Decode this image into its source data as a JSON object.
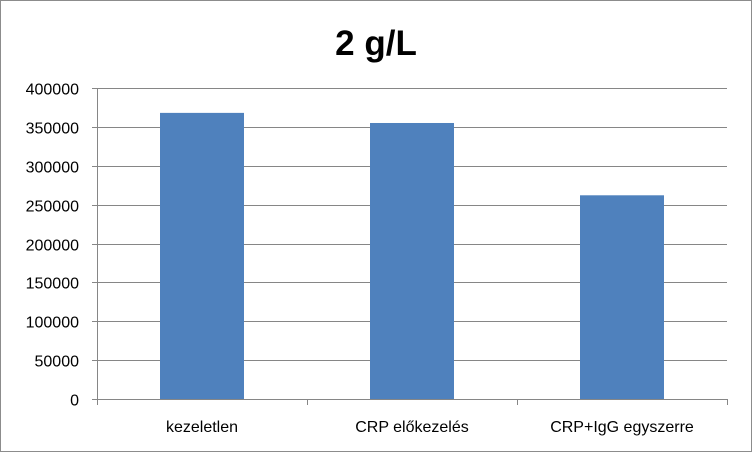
{
  "chart_data": {
    "type": "bar",
    "title": "2 g/L",
    "xlabel": "",
    "ylabel": "",
    "categories": [
      "kezeletlen",
      "CRP előkezelés",
      "CRP+IgG egyszerre"
    ],
    "values": [
      368000,
      355000,
      262000
    ],
    "ylim": [
      0,
      400000
    ],
    "yticks": [
      "0",
      "50000",
      "100000",
      "150000",
      "200000",
      "250000",
      "300000",
      "350000",
      "400000"
    ],
    "grid": true,
    "legend": "none",
    "colors": {
      "bar": "#4F81BD",
      "grid": "#868686",
      "axis": "#868686",
      "border": "#8c8c8c"
    }
  }
}
